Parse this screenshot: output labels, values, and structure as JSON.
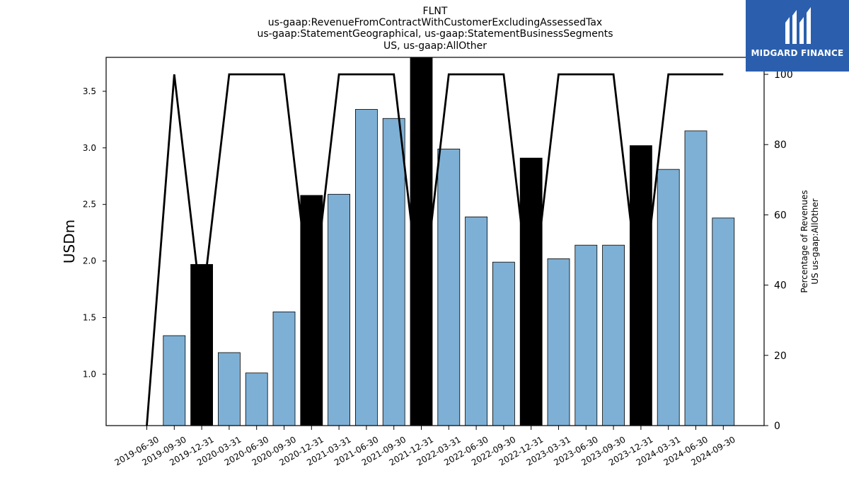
{
  "title_lines": [
    "FLNT",
    "us-gaap:RevenueFromContractWithCustomerExcludingAssessedTax",
    "us-gaap:StatementGeographical, us-gaap:StatementBusinessSegments",
    "US, us-gaap:AllOther"
  ],
  "logo": {
    "text": "MIDGARD FINANCE",
    "background": "#2b5fad"
  },
  "colors": {
    "bar_blue": "#7eb0d5",
    "bar_black": "#000000",
    "line": "#000000"
  },
  "chart_data": {
    "type": "bar",
    "categories": [
      "2019-06-30",
      "2019-09-30",
      "2019-12-31",
      "2020-03-31",
      "2020-06-30",
      "2020-09-30",
      "2020-12-31",
      "2021-03-31",
      "2021-06-30",
      "2021-09-30",
      "2021-12-31",
      "2022-03-31",
      "2022-06-30",
      "2022-09-30",
      "2022-12-31",
      "2023-03-31",
      "2023-06-30",
      "2023-09-30",
      "2023-12-31",
      "2024-03-31",
      "2024-06-30",
      "2024-09-30"
    ],
    "series": [
      {
        "axis": "left",
        "type": "bar",
        "values": [
          null,
          1.34,
          1.97,
          1.19,
          1.01,
          1.55,
          2.58,
          2.59,
          3.34,
          3.26,
          3.8,
          2.99,
          2.39,
          1.99,
          2.91,
          2.02,
          2.14,
          2.14,
          3.02,
          2.81,
          3.15,
          2.38
        ],
        "colors": [
          "blue",
          "blue",
          "black",
          "blue",
          "blue",
          "blue",
          "black",
          "blue",
          "blue",
          "blue",
          "black",
          "blue",
          "blue",
          "blue",
          "black",
          "blue",
          "blue",
          "blue",
          "black",
          "blue",
          "blue",
          "blue"
        ]
      },
      {
        "axis": "right",
        "type": "line",
        "values": [
          0,
          100,
          33,
          100,
          100,
          100,
          33,
          100,
          100,
          100,
          33,
          100,
          100,
          100,
          33,
          100,
          100,
          100,
          33,
          100,
          100,
          100
        ]
      }
    ],
    "ylabel": "USDm",
    "y2label_lines": [
      "Percentage of Revenues",
      "US us-gaap:AllOther"
    ],
    "ylim": [
      0.545,
      3.8
    ],
    "y2lim": [
      0,
      100
    ],
    "yticks": [
      1.0,
      1.5,
      2.0,
      2.5,
      3.0,
      3.5
    ],
    "ytick_labels": [
      "1.0",
      "1.5",
      "2.0",
      "2.5",
      "3.0",
      "3.5"
    ],
    "y2ticks": [
      0,
      20,
      40,
      60,
      80,
      100
    ],
    "y2tick_labels": [
      "0",
      "20",
      "40",
      "60",
      "80",
      "100"
    ],
    "grid": false,
    "legend": "none"
  }
}
